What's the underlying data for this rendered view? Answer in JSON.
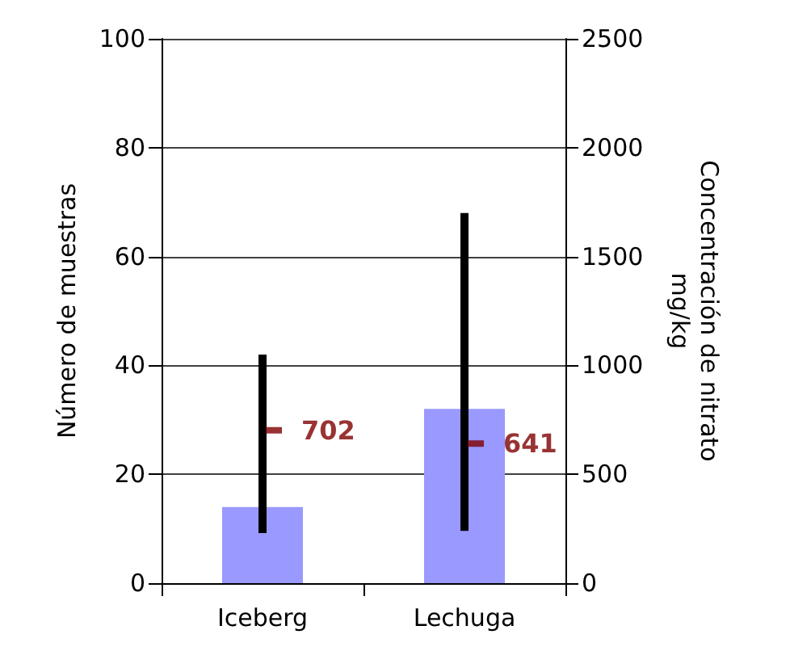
{
  "chart_data": {
    "type": "bar",
    "ylabel": "Número de muestras",
    "y2label": "Concentración de nitrato\nmg/kg",
    "categories": [
      "Iceberg",
      "Lechuga"
    ],
    "series": [
      {
        "color": "#9999ff",
        "values": [
          14,
          32
        ]
      },
      {
        "type": "bar",
        "axis": "y2",
        "color": "#000000",
        "base": [
          230,
          240
        ],
        "values": [
          820,
          1460
        ]
      },
      {
        "type": "scatter",
        "axis": "y2",
        "color": "#800000",
        "marker": "square",
        "values": [
          702,
          641
        ],
        "data_labels": true
      }
    ],
    "ylim": [
      0,
      100
    ],
    "yticks": [
      0,
      20,
      40,
      60,
      80,
      100
    ],
    "y2lim": [
      0,
      2500
    ],
    "y2ticks": [
      0,
      500,
      1000,
      1500,
      2000,
      2500
    ],
    "grid": "y"
  }
}
